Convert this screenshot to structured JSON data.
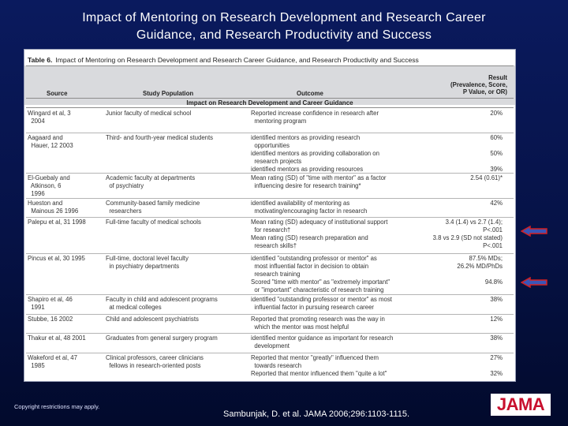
{
  "slide": {
    "title_line1": "Impact of Mentoring on Research Development and Research Career",
    "title_line2": "Guidance, and Research Productivity and Success",
    "copyright": "Copyright restrictions may apply.",
    "citation": "Sambunjak, D. et al. JAMA 2006;296:1103-1115.",
    "logo_text": "JAMA"
  },
  "table": {
    "label": "Table 6.",
    "caption": "Impact of Mentoring on Research Development and Research Career Guidance, and Research Productivity and Success",
    "headers": {
      "source": "Source",
      "population": "Study Population",
      "outcome": "Outcome",
      "result": "Result\n(Prevalence, Score,\nP Value, or OR)"
    },
    "section": "Impact on Research Development and Career Guidance",
    "rows": [
      {
        "source": "Wingard et al, 3\n  2004",
        "population": "Junior faculty of medical school",
        "outcome": "Reported increase confidence in research after\n  mentoring program",
        "result": "20%"
      },
      {
        "source": "Aagaard and\n  Hauer, 12 2003",
        "population": "Third- and fourth-year medical students",
        "outcome": "identified mentors as providing research\n  opportunities\nidentified mentors as providing collaboration on\n  research projects\nidentified mentors as providing resources",
        "result": "60%\n\n50%\n\n39%"
      },
      {
        "source": "El-Guebaly and\n  Atkinson, 6\n  1996",
        "population": "Academic faculty at departments\n  of psychiatry",
        "outcome": "Mean rating (SD) of \"time with mentor\" as a factor\n  influencing desire for research training*",
        "result": "2.54 (0.61)*"
      },
      {
        "source": "Hueston and\n  Mainous 26 1996",
        "population": "Community-based family medicine\n  researchers",
        "outcome": "identified availability of mentoring as\n  motivating/encouraging factor in research",
        "result": "42%"
      },
      {
        "source": "Palepu et al, 31 1998",
        "population": "Full-time faculty of medical schools",
        "outcome": "Mean rating (SD) adequacy of institutional support\n  for research†\nMean rating (SD) research preparation and\n  research skills†",
        "result": "3.4 (1.4) vs 2.7 (1.4);\nP<.001\n3.8 vs 2.9 (SD not stated)\nP<.001"
      },
      {
        "source": "Pincus et al, 30 1995",
        "population": "Full-time, doctoral level faculty\n  in psychiatry departments",
        "outcome": "identified \"outstanding professor or mentor\" as\n  most influential factor in decision to obtain\n  research training\nScored \"time with mentor\" as \"extremely important\"\n  or \"important\" characteristic of research training",
        "result": "87.5% MDs;\n26.2% MD/PhDs\n\n94.8%"
      },
      {
        "source": "Shapiro et al, 46\n  1991",
        "population": "Faculty in child and adolescent programs\n  at medical colleges",
        "outcome": "identified \"outstanding professor or mentor\" as most\n  influential factor in pursuing research career",
        "result": "38%"
      },
      {
        "source": "Stubbe, 16 2002",
        "population": "Child and adolescent psychiatrists",
        "outcome": "Reported that promoting research was the way in\n  which the mentor was most helpful",
        "result": "12%"
      },
      {
        "source": "Thakur et al, 48 2001",
        "population": "Graduates from general surgery program",
        "outcome": "identified mentor guidance as important for research\n  development",
        "result": "38%"
      },
      {
        "source": "Wakeford et al, 47\n  1985",
        "population": "Clinical professors, career clinicians\n  fellows in research-oriented posts",
        "outcome": "Reported that mentor \"greatly\" influenced them\n  towards research\nReported that mentor influenced them \"quite a lot\"",
        "result": "27%\n\n32%"
      }
    ]
  },
  "colors": {
    "background": "#061246",
    "arrow": "#d42020",
    "logo_red": "#c8102e"
  },
  "icons": {
    "arrow1": "left-arrow-icon",
    "arrow2": "left-arrow-icon"
  }
}
